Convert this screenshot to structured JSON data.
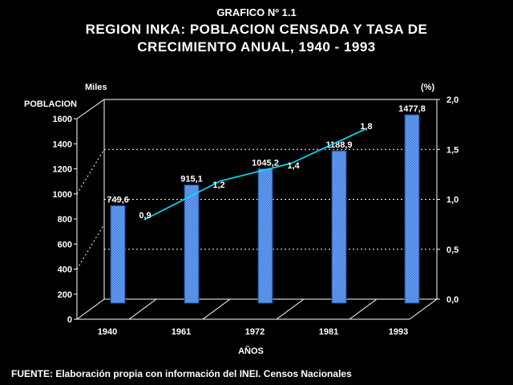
{
  "chart_data": {
    "type": "bar",
    "title_line1": "GRAFICO Nº 1.1",
    "title_line2": "REGION INKA: POBLACION CENSADA Y TASA DE",
    "title_line3": "CRECIMIENTO ANUAL, 1940 - 1993",
    "units_left": "Miles",
    "ylabel": "POBLACION",
    "units_right": "(%)",
    "xlabel": "AÑOS",
    "categories": [
      "1940",
      "1961",
      "1972",
      "1981",
      "1993"
    ],
    "ylim": [
      0,
      1600
    ],
    "yticks": [
      "0",
      "200",
      "400",
      "600",
      "800",
      "1000",
      "1200",
      "1400",
      "1600"
    ],
    "y2lim": [
      0,
      2
    ],
    "y2ticks": [
      "0,0",
      "0,5",
      "1,0",
      "1,5",
      "2,0"
    ],
    "series": [
      {
        "name": "",
        "kind": "bar",
        "values": [
          749.6,
          915.1,
          1045.2,
          1188.9,
          1477.8
        ],
        "labels": [
          "749,6",
          "915,1",
          "1045,2",
          "1188,9",
          "1477,8"
        ]
      },
      {
        "name": "",
        "kind": "line",
        "axis": "right",
        "x": [
          "1940-1961",
          "1961-1972",
          "1972-1981",
          "1981-1993"
        ],
        "values": [
          0.9,
          1.2,
          1.4,
          1.8
        ],
        "labels": [
          "0,9",
          "1,2",
          "1,4",
          "1,8"
        ]
      }
    ],
    "grid": "dotted horizontal on back wall",
    "colors": {
      "bar": "#3f7fdc",
      "line": "#00e5ff",
      "background": "#000000",
      "text": "#ffffff"
    }
  },
  "footer": {
    "source": "FUENTE: Elaboración propia con información del INEI. Censos Nacionales"
  }
}
